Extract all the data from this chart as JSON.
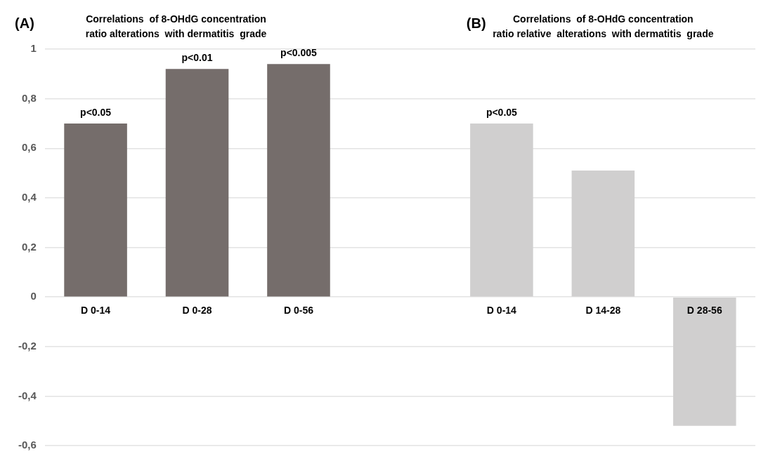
{
  "chart_data": {
    "type": "bar",
    "annotations": [
      "(A)",
      "Correlations  of 8-OHdG concentration\nratio alterations  with dermatitis  grade",
      "(B)",
      "Correlations  of 8-OHdG concentration\nratio relative  alterations  with dermatitis  grade"
    ],
    "categories": [
      "D 0-14",
      "D 0-28",
      "D 0-56",
      null,
      "D 0-14",
      "D 14-28",
      "D 28-56"
    ],
    "values": [
      0.7,
      0.92,
      0.94,
      null,
      0.7,
      0.51,
      -0.52
    ],
    "colors": [
      "#756d6b",
      "#756d6b",
      "#756d6b",
      "#ffffff",
      "#d0cfcf",
      "#d0cfcf",
      "#d0cfcf"
    ],
    "value_labels": [
      "p<0.05",
      "p<0.01",
      "p<0.005",
      null,
      "p<0.05",
      null,
      null
    ],
    "ylim": [
      -0.6,
      1
    ],
    "yticks": [
      {
        "value": -0.6,
        "label": "-0,6"
      },
      {
        "value": -0.4,
        "label": "-0,4"
      },
      {
        "value": -0.2,
        "label": "-0,2"
      },
      0,
      {
        "value": 0.2,
        "label": "0,2"
      },
      {
        "value": 0.4,
        "label": "0,4"
      },
      {
        "value": 0.6,
        "label": "0,6"
      },
      {
        "value": 0.8,
        "label": "0,8"
      },
      1
    ],
    "grid": "y",
    "legend": false
  }
}
